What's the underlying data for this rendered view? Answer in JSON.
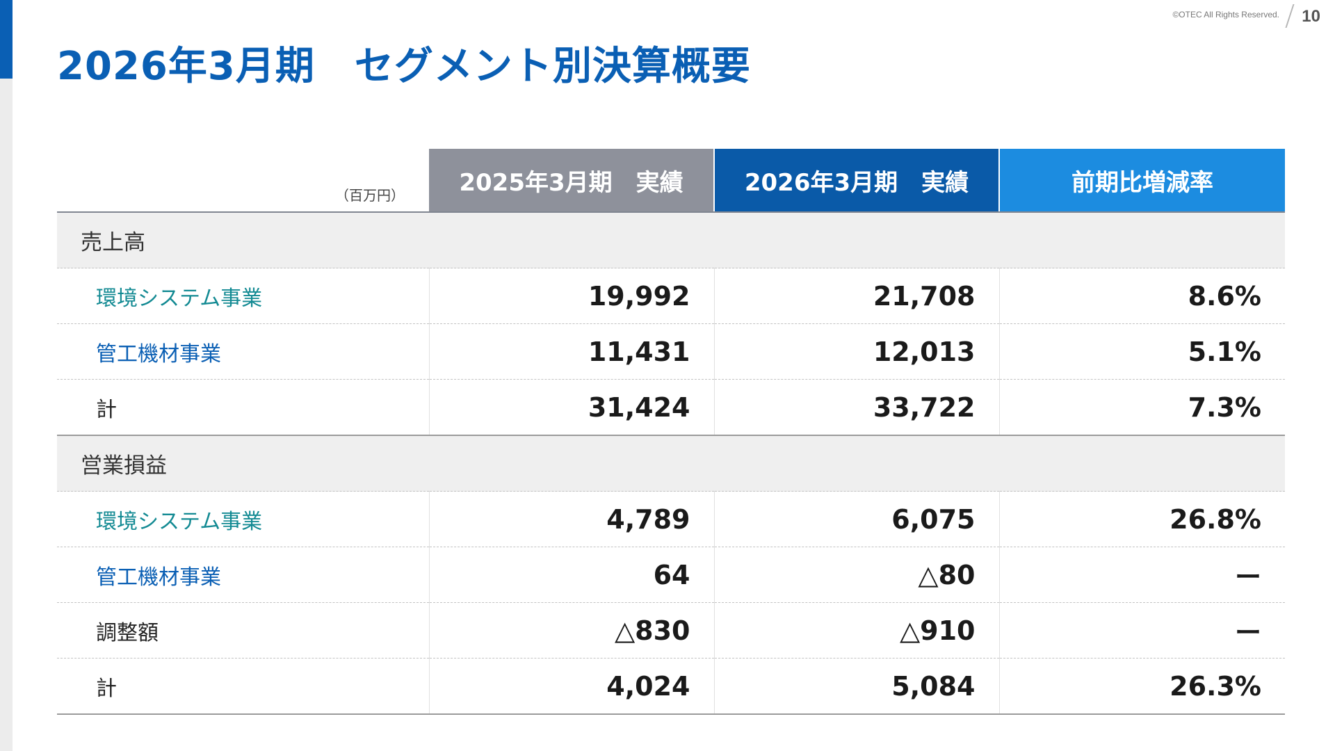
{
  "page": {
    "copyright": "©OTEC All Rights Reserved.",
    "page_number": "10",
    "title": "2026年3月期　セグメント別決算概要"
  },
  "table": {
    "unit": "（百万円）",
    "headers": [
      "2025年3月期　実績",
      "2026年3月期　実績",
      "前期比増減率"
    ],
    "header_colors": [
      "#8e919b",
      "#0a5aa8",
      "#1c8ce0"
    ],
    "sections": [
      {
        "name": "売上高",
        "rows": [
          {
            "label": "環境システム事業",
            "prev": "19,992",
            "cur": "21,708",
            "rate": "8.6%"
          },
          {
            "label": "管工機材事業",
            "prev": "11,431",
            "cur": "12,013",
            "rate": "5.1%"
          },
          {
            "label": "計",
            "prev": "31,424",
            "cur": "33,722",
            "rate": "7.3%"
          }
        ]
      },
      {
        "name": "営業損益",
        "rows": [
          {
            "label": "環境システム事業",
            "prev": "4,789",
            "cur": "6,075",
            "rate": "26.8%"
          },
          {
            "label": "管工機材事業",
            "prev": "64",
            "cur": "△80",
            "rate": "ー"
          },
          {
            "label": "調整額",
            "prev": "△830",
            "cur": "△910",
            "rate": "ー"
          },
          {
            "label": "計",
            "prev": "4,024",
            "cur": "5,084",
            "rate": "26.3%"
          }
        ]
      }
    ]
  },
  "colors": {
    "brand_blue": "#0a5fb4",
    "env_segment": "#138a93",
    "pipe_segment": "#0a5fb4"
  }
}
